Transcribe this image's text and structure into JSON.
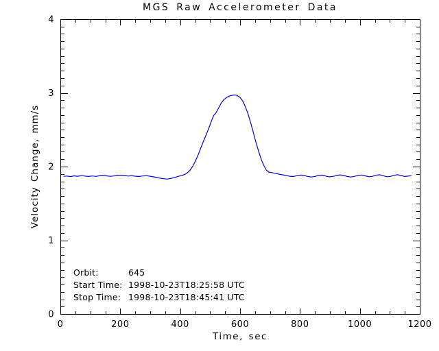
{
  "colors": {
    "line": "#0000dd",
    "axis": "#000000",
    "background": "#ffffff"
  },
  "annotation": {
    "lines": [
      {
        "label": "Orbit:",
        "value": "645"
      },
      {
        "label": "Start Time:",
        "value": "1998-10-23T18:25:58 UTC"
      },
      {
        "label": "Stop Time:",
        "value": "1998-10-23T18:45:41 UTC"
      }
    ]
  },
  "chart_data": {
    "type": "line",
    "title": "MGS Raw Accelerometer Data",
    "xlabel": "Time, sec",
    "ylabel": "Velocity Change, mm/s",
    "xlim": [
      0,
      1200
    ],
    "ylim": [
      0,
      4
    ],
    "xticks": [
      0,
      200,
      400,
      600,
      800,
      1000,
      1200
    ],
    "yticks": [
      0,
      1,
      2,
      3,
      4
    ],
    "x_minor_step": 50,
    "y_minor_step": 0.1,
    "grid": false,
    "legend": null,
    "series": [
      {
        "name": "velocity-change",
        "color": "#0000dd",
        "points": [
          [
            10,
            1.868
          ],
          [
            22,
            1.872
          ],
          [
            34,
            1.864
          ],
          [
            46,
            1.874
          ],
          [
            58,
            1.869
          ],
          [
            70,
            1.877
          ],
          [
            82,
            1.872
          ],
          [
            94,
            1.866
          ],
          [
            106,
            1.873
          ],
          [
            118,
            1.867
          ],
          [
            130,
            1.874
          ],
          [
            142,
            1.88
          ],
          [
            154,
            1.874
          ],
          [
            166,
            1.868
          ],
          [
            178,
            1.873
          ],
          [
            190,
            1.879
          ],
          [
            202,
            1.884
          ],
          [
            214,
            1.878
          ],
          [
            226,
            1.872
          ],
          [
            238,
            1.876
          ],
          [
            250,
            1.87
          ],
          [
            262,
            1.866
          ],
          [
            274,
            1.872
          ],
          [
            286,
            1.877
          ],
          [
            298,
            1.87
          ],
          [
            310,
            1.861
          ],
          [
            322,
            1.852
          ],
          [
            334,
            1.842
          ],
          [
            346,
            1.834
          ],
          [
            358,
            1.831
          ],
          [
            370,
            1.84
          ],
          [
            382,
            1.853
          ],
          [
            394,
            1.868
          ],
          [
            406,
            1.88
          ],
          [
            415,
            1.893
          ],
          [
            424,
            1.915
          ],
          [
            433,
            1.953
          ],
          [
            442,
            2.005
          ],
          [
            451,
            2.075
          ],
          [
            460,
            2.16
          ],
          [
            469,
            2.255
          ],
          [
            478,
            2.345
          ],
          [
            487,
            2.435
          ],
          [
            496,
            2.525
          ],
          [
            505,
            2.625
          ],
          [
            512,
            2.695
          ],
          [
            519,
            2.725
          ],
          [
            527,
            2.785
          ],
          [
            536,
            2.855
          ],
          [
            545,
            2.905
          ],
          [
            554,
            2.935
          ],
          [
            563,
            2.955
          ],
          [
            572,
            2.966
          ],
          [
            581,
            2.972
          ],
          [
            590,
            2.966
          ],
          [
            599,
            2.942
          ],
          [
            608,
            2.895
          ],
          [
            617,
            2.82
          ],
          [
            626,
            2.72
          ],
          [
            635,
            2.6
          ],
          [
            644,
            2.465
          ],
          [
            653,
            2.33
          ],
          [
            662,
            2.205
          ],
          [
            671,
            2.095
          ],
          [
            680,
            2.01
          ],
          [
            688,
            1.95
          ],
          [
            696,
            1.925
          ],
          [
            706,
            1.918
          ],
          [
            718,
            1.908
          ],
          [
            730,
            1.897
          ],
          [
            742,
            1.888
          ],
          [
            754,
            1.878
          ],
          [
            766,
            1.869
          ],
          [
            778,
            1.866
          ],
          [
            790,
            1.876
          ],
          [
            802,
            1.885
          ],
          [
            814,
            1.878
          ],
          [
            826,
            1.866
          ],
          [
            838,
            1.859
          ],
          [
            850,
            1.867
          ],
          [
            862,
            1.88
          ],
          [
            874,
            1.884
          ],
          [
            886,
            1.872
          ],
          [
            898,
            1.861
          ],
          [
            910,
            1.866
          ],
          [
            922,
            1.878
          ],
          [
            934,
            1.887
          ],
          [
            946,
            1.879
          ],
          [
            958,
            1.866
          ],
          [
            970,
            1.859
          ],
          [
            982,
            1.868
          ],
          [
            994,
            1.88
          ],
          [
            1006,
            1.886
          ],
          [
            1018,
            1.874
          ],
          [
            1030,
            1.862
          ],
          [
            1042,
            1.868
          ],
          [
            1054,
            1.882
          ],
          [
            1066,
            1.889
          ],
          [
            1078,
            1.876
          ],
          [
            1090,
            1.862
          ],
          [
            1102,
            1.867
          ],
          [
            1114,
            1.882
          ],
          [
            1126,
            1.889
          ],
          [
            1138,
            1.879
          ],
          [
            1150,
            1.866
          ],
          [
            1160,
            1.871
          ],
          [
            1172,
            1.876
          ]
        ]
      }
    ]
  }
}
